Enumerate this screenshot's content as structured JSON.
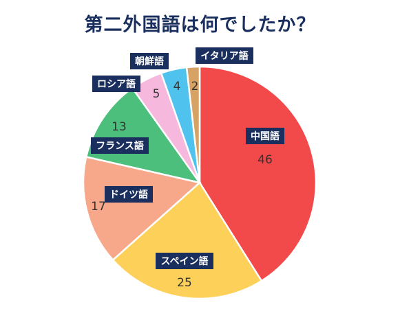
{
  "chart_data": {
    "type": "pie",
    "title": "第二外国語は何でしたか？",
    "categories": [
      "中国語",
      "スペイン語",
      "ドイツ語",
      "フランス語",
      "ロシア語",
      "朝鮮語",
      "イタリア語"
    ],
    "values": [
      46,
      25,
      17,
      13,
      5,
      4,
      2
    ],
    "colors": [
      "#f24a4a",
      "#fdd05a",
      "#f7a88b",
      "#4dbf7c",
      "#f7b8dd",
      "#4fc2ee",
      "#d6a365"
    ],
    "legend": "none",
    "label_style": "callout boxes with values"
  }
}
